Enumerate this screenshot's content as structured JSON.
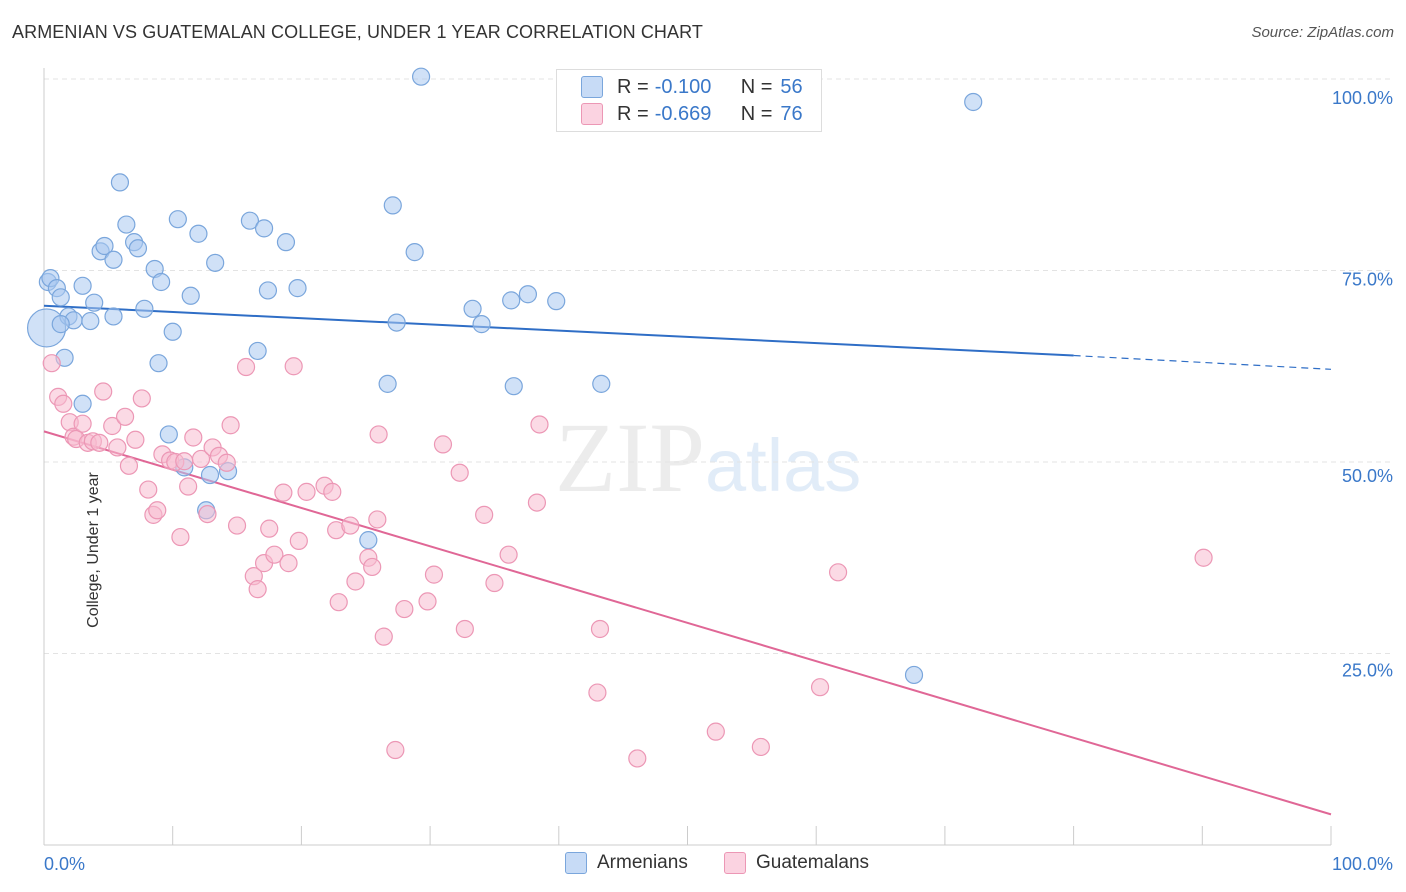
{
  "title": "ARMENIAN VS GUATEMALAN COLLEGE, UNDER 1 YEAR CORRELATION CHART",
  "source": "Source: ZipAtlas.com",
  "watermark": {
    "zip": "ZIP",
    "atlas": "atlas"
  },
  "legend": {
    "armenian": {
      "r_label": "R = ",
      "r_value": "-0.100",
      "n_label": "N = ",
      "n_value": "56"
    },
    "guatemalan": {
      "r_label": "R = ",
      "r_value": "-0.669",
      "n_label": "N = ",
      "n_value": "76"
    }
  },
  "bottom_legend": {
    "armenians": "Armenians",
    "guatemalans": "Guatemalans"
  },
  "colors": {
    "armenian_fill": "#aac8f0",
    "armenian_stroke": "#7aa6dc",
    "armenian_line": "#2f6ec6",
    "guatemalan_fill": "#f7bcd0",
    "guatemalan_stroke": "#ec97b5",
    "guatemalan_line": "#e06796",
    "axis_text": "#3a78c9",
    "grid": "#e3e3e3"
  },
  "chart_data": {
    "type": "scatter",
    "title": "ARMENIAN VS GUATEMALAN COLLEGE, UNDER 1 YEAR CORRELATION CHART",
    "xlabel": "",
    "ylabel": "College, Under 1 year",
    "xlim": [
      0,
      100
    ],
    "ylim": [
      0,
      100
    ],
    "x_tick_labels": [
      "0.0%",
      "100.0%"
    ],
    "y_ticks": [
      25,
      50,
      75,
      100
    ],
    "y_tick_labels": [
      "25.0%",
      "50.0%",
      "75.0%",
      "100.0%"
    ],
    "series": [
      {
        "name": "Armenians",
        "points": [
          [
            0.2,
            67.5
          ],
          [
            0.3,
            73.5
          ],
          [
            0.5,
            74.0
          ],
          [
            1.0,
            72.7
          ],
          [
            1.3,
            71.5
          ],
          [
            1.6,
            63.6
          ],
          [
            1.9,
            69.0
          ],
          [
            2.3,
            68.5
          ],
          [
            3.0,
            73.0
          ],
          [
            3.0,
            57.6
          ],
          [
            3.6,
            68.4
          ],
          [
            3.9,
            70.8
          ],
          [
            4.4,
            77.5
          ],
          [
            4.7,
            78.2
          ],
          [
            5.4,
            76.4
          ],
          [
            5.4,
            69.0
          ],
          [
            5.9,
            86.5
          ],
          [
            6.4,
            81.0
          ],
          [
            7.0,
            78.7
          ],
          [
            7.3,
            77.9
          ],
          [
            7.8,
            70.0
          ],
          [
            8.6,
            75.2
          ],
          [
            8.9,
            62.9
          ],
          [
            9.1,
            73.5
          ],
          [
            9.7,
            53.6
          ],
          [
            10.0,
            67.0
          ],
          [
            10.4,
            81.7
          ],
          [
            10.9,
            49.3
          ],
          [
            11.4,
            71.7
          ],
          [
            12.0,
            79.8
          ],
          [
            12.6,
            43.7
          ],
          [
            12.9,
            48.3
          ],
          [
            13.3,
            76.0
          ],
          [
            14.3,
            48.8
          ],
          [
            16.0,
            81.5
          ],
          [
            16.6,
            64.5
          ],
          [
            17.1,
            80.5
          ],
          [
            17.4,
            72.4
          ],
          [
            18.8,
            78.7
          ],
          [
            19.7,
            72.7
          ],
          [
            25.2,
            39.8
          ],
          [
            26.7,
            60.2
          ],
          [
            27.1,
            83.5
          ],
          [
            27.4,
            68.2
          ],
          [
            28.8,
            77.4
          ],
          [
            29.3,
            100.3
          ],
          [
            33.3,
            70.0
          ],
          [
            34.0,
            68.0
          ],
          [
            36.3,
            71.1
          ],
          [
            36.5,
            59.9
          ],
          [
            37.6,
            71.9
          ],
          [
            39.8,
            71.0
          ],
          [
            43.3,
            60.2
          ],
          [
            67.6,
            22.2
          ],
          [
            72.2,
            97.0
          ],
          [
            1.3,
            68.0
          ]
        ],
        "trend": {
          "x0": 0,
          "y0": 70.4,
          "x1": 80,
          "y1": 63.9,
          "dash_x1": 100,
          "dash_y1": 62.1
        }
      },
      {
        "name": "Guatemalans",
        "points": [
          [
            0.6,
            62.9
          ],
          [
            1.1,
            58.5
          ],
          [
            1.5,
            57.6
          ],
          [
            2.0,
            55.2
          ],
          [
            2.3,
            53.3
          ],
          [
            2.5,
            53.0
          ],
          [
            3.0,
            55.0
          ],
          [
            3.4,
            52.5
          ],
          [
            3.8,
            52.7
          ],
          [
            4.3,
            52.5
          ],
          [
            4.6,
            59.2
          ],
          [
            5.3,
            54.7
          ],
          [
            5.7,
            51.9
          ],
          [
            6.3,
            55.9
          ],
          [
            6.6,
            49.5
          ],
          [
            7.1,
            52.9
          ],
          [
            7.6,
            58.3
          ],
          [
            8.1,
            46.4
          ],
          [
            8.5,
            43.1
          ],
          [
            8.8,
            43.7
          ],
          [
            9.2,
            51.0
          ],
          [
            9.8,
            50.2
          ],
          [
            10.2,
            50.0
          ],
          [
            10.6,
            40.2
          ],
          [
            10.9,
            50.1
          ],
          [
            11.2,
            46.8
          ],
          [
            11.6,
            53.2
          ],
          [
            12.2,
            50.4
          ],
          [
            12.7,
            43.2
          ],
          [
            13.1,
            51.9
          ],
          [
            13.6,
            50.8
          ],
          [
            14.2,
            49.9
          ],
          [
            14.5,
            54.8
          ],
          [
            15.0,
            41.7
          ],
          [
            15.7,
            62.4
          ],
          [
            16.3,
            35.1
          ],
          [
            16.6,
            33.4
          ],
          [
            17.1,
            36.8
          ],
          [
            17.5,
            41.3
          ],
          [
            17.9,
            37.9
          ],
          [
            18.6,
            46.0
          ],
          [
            19.0,
            36.8
          ],
          [
            19.4,
            62.5
          ],
          [
            19.8,
            39.7
          ],
          [
            20.4,
            46.1
          ],
          [
            21.8,
            46.9
          ],
          [
            22.4,
            46.1
          ],
          [
            22.7,
            41.1
          ],
          [
            22.9,
            31.7
          ],
          [
            23.8,
            41.7
          ],
          [
            24.2,
            34.4
          ],
          [
            25.2,
            37.5
          ],
          [
            25.5,
            36.3
          ],
          [
            25.9,
            42.5
          ],
          [
            26.0,
            53.6
          ],
          [
            26.4,
            27.2
          ],
          [
            27.3,
            12.4
          ],
          [
            28.0,
            30.8
          ],
          [
            29.8,
            31.8
          ],
          [
            30.3,
            35.3
          ],
          [
            31.0,
            52.3
          ],
          [
            32.3,
            48.6
          ],
          [
            32.7,
            28.2
          ],
          [
            34.2,
            43.1
          ],
          [
            35.0,
            34.2
          ],
          [
            36.1,
            37.9
          ],
          [
            38.3,
            44.7
          ],
          [
            38.5,
            54.9
          ],
          [
            43.0,
            19.9
          ],
          [
            43.2,
            28.2
          ],
          [
            46.1,
            11.3
          ],
          [
            52.2,
            14.8
          ],
          [
            55.7,
            12.8
          ],
          [
            60.3,
            20.6
          ],
          [
            61.7,
            35.6
          ],
          [
            90.1,
            37.5
          ]
        ],
        "trend": {
          "x0": 0,
          "y0": 54.0,
          "x1": 100,
          "y1": 4.0
        }
      }
    ]
  }
}
